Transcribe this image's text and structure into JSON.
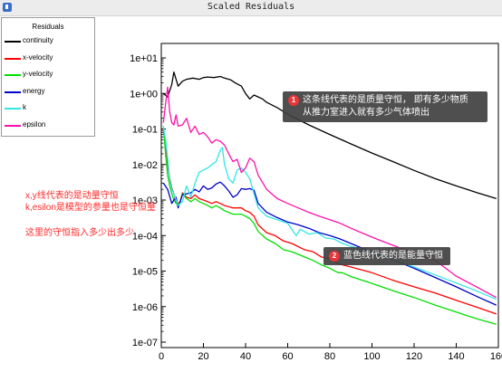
{
  "window": {
    "title": "Scaled Residuals"
  },
  "legend": {
    "title": "Residuals",
    "items": [
      {
        "name": "continuity",
        "color": "#000000"
      },
      {
        "name": "x-velocity",
        "color": "#ff0000"
      },
      {
        "name": "y-velocity",
        "color": "#00e000"
      },
      {
        "name": "energy",
        "color": "#0000cc"
      },
      {
        "name": "k",
        "color": "#33e6e6"
      },
      {
        "name": "epsilon",
        "color": "#ff11aa"
      }
    ]
  },
  "annotations": {
    "callout_1": {
      "badge": "1",
      "line1": "这条线代表的是质量守恒，  即有多少物质",
      "line2": "从推力室进入就有多少气体喷出"
    },
    "callout_2": {
      "badge": "2",
      "text": "蓝色线代表的是能量守恒"
    },
    "note_line1": "x,y线代表的是动量守恒",
    "note_line2": "k,esilon是模型的参量也是守恒量",
    "note_line3": "这里的守恒指入多少出多少"
  },
  "chart_data": {
    "type": "line",
    "title": "",
    "xlabel": "",
    "ylabel": "",
    "xlim": [
      0,
      160
    ],
    "ylim": [
      1e-07,
      10
    ],
    "yscale": "log",
    "x_ticks": [
      0,
      20,
      40,
      60,
      80,
      100,
      120,
      140,
      160
    ],
    "y_ticks": [
      {
        "value": 1e-07,
        "label": "1e-07"
      },
      {
        "value": 1e-06,
        "label": "1e-06"
      },
      {
        "value": 1e-05,
        "label": "1e-05"
      },
      {
        "value": 0.0001,
        "label": "1e-04"
      },
      {
        "value": 0.001,
        "label": "1e-03"
      },
      {
        "value": 0.01,
        "label": "1e-02"
      },
      {
        "value": 0.1,
        "label": "1e-01"
      },
      {
        "value": 1,
        "label": "1e+00"
      },
      {
        "value": 10,
        "label": "1e+01"
      }
    ],
    "grid": false,
    "series": [
      {
        "name": "continuity",
        "color": "#000000",
        "points": [
          [
            1,
            1
          ],
          [
            3,
            0.8
          ],
          [
            5,
            1.8
          ],
          [
            6,
            4
          ],
          [
            7,
            2.5
          ],
          [
            8,
            1.6
          ],
          [
            10,
            2.2
          ],
          [
            12,
            2.5
          ],
          [
            15,
            2.7
          ],
          [
            18,
            2.5
          ],
          [
            20,
            2.8
          ],
          [
            22,
            2.9
          ],
          [
            25,
            2.8
          ],
          [
            28,
            3
          ],
          [
            30,
            2.7
          ],
          [
            33,
            2.4
          ],
          [
            35,
            2
          ],
          [
            38,
            1.6
          ],
          [
            40,
            1
          ],
          [
            42,
            0.7
          ],
          [
            44,
            0.9
          ],
          [
            46,
            0.8
          ],
          [
            48,
            0.7
          ],
          [
            50,
            0.56
          ],
          [
            55,
            0.4
          ],
          [
            60,
            0.26
          ],
          [
            70,
            0.13
          ],
          [
            80,
            0.07
          ],
          [
            90,
            0.038
          ],
          [
            100,
            0.021
          ],
          [
            110,
            0.012
          ],
          [
            120,
            0.0068
          ],
          [
            130,
            0.004
          ],
          [
            140,
            0.0025
          ],
          [
            150,
            0.0016
          ],
          [
            159,
            0.0011
          ]
        ]
      },
      {
        "name": "x-velocity",
        "color": "#ff0000",
        "points": [
          [
            1,
            0.1
          ],
          [
            2,
            0.04
          ],
          [
            3,
            0.01
          ],
          [
            4,
            0.004
          ],
          [
            5,
            0.0022
          ],
          [
            6,
            0.0015
          ],
          [
            7,
            0.0009
          ],
          [
            8,
            0.0008
          ],
          [
            9,
            0.0009
          ],
          [
            10,
            0.0016
          ],
          [
            12,
            0.0012
          ],
          [
            14,
            0.0011
          ],
          [
            16,
            0.0014
          ],
          [
            18,
            0.0011
          ],
          [
            20,
            0.001
          ],
          [
            22,
            0.0009
          ],
          [
            24,
            0.0008
          ],
          [
            26,
            0.0009
          ],
          [
            28,
            0.0008
          ],
          [
            30,
            0.0007
          ],
          [
            34,
            0.0006
          ],
          [
            38,
            0.0006
          ],
          [
            40,
            0.0005
          ],
          [
            42,
            0.00045
          ],
          [
            44,
            0.00035
          ],
          [
            46,
            0.0002
          ],
          [
            50,
            0.00012
          ],
          [
            54,
            0.0001
          ],
          [
            58,
            7e-05
          ],
          [
            62,
            6e-05
          ],
          [
            68,
            4e-05
          ],
          [
            72,
            3.5e-05
          ],
          [
            76,
            2.5e-05
          ],
          [
            80,
            2.2e-05
          ],
          [
            84,
            1.6e-05
          ],
          [
            86,
            1.5e-05
          ],
          [
            90,
            1.3e-05
          ],
          [
            100,
            9e-06
          ],
          [
            110,
            5.5e-06
          ],
          [
            120,
            3.6e-06
          ],
          [
            130,
            2.4e-06
          ],
          [
            140,
            1.5e-06
          ],
          [
            150,
            9.5e-07
          ],
          [
            159,
            6.2e-07
          ]
        ]
      },
      {
        "name": "y-velocity",
        "color": "#00e000",
        "points": [
          [
            1,
            0.12
          ],
          [
            2,
            0.02
          ],
          [
            3,
            0.005
          ],
          [
            4,
            0.0025
          ],
          [
            5,
            0.0015
          ],
          [
            6,
            0.001
          ],
          [
            7,
            0.0008
          ],
          [
            8,
            0.0007
          ],
          [
            9,
            0.0009
          ],
          [
            10,
            0.0015
          ],
          [
            12,
            0.0011
          ],
          [
            14,
            0.0009
          ],
          [
            16,
            0.0011
          ],
          [
            18,
            0.0009
          ],
          [
            20,
            0.0008
          ],
          [
            22,
            0.0007
          ],
          [
            24,
            0.0006
          ],
          [
            26,
            0.0007
          ],
          [
            28,
            0.0006
          ],
          [
            30,
            0.0005
          ],
          [
            34,
            0.0004
          ],
          [
            38,
            0.0004
          ],
          [
            40,
            0.00035
          ],
          [
            42,
            0.0003
          ],
          [
            44,
            0.00022
          ],
          [
            46,
            0.00013
          ],
          [
            50,
            8e-05
          ],
          [
            54,
            6e-05
          ],
          [
            58,
            4e-05
          ],
          [
            62,
            3.5e-05
          ],
          [
            68,
            2.5e-05
          ],
          [
            72,
            2e-05
          ],
          [
            76,
            1.5e-05
          ],
          [
            80,
            1.2e-05
          ],
          [
            84,
            9e-06
          ],
          [
            86,
            9e-06
          ],
          [
            90,
            7e-06
          ],
          [
            100,
            4.5e-06
          ],
          [
            110,
            2.8e-06
          ],
          [
            120,
            1.8e-06
          ],
          [
            130,
            1.1e-06
          ],
          [
            140,
            7e-07
          ],
          [
            150,
            4.5e-07
          ],
          [
            159,
            3.2e-07
          ]
        ]
      },
      {
        "name": "energy",
        "color": "#0000cc",
        "points": [
          [
            1,
            0.003
          ],
          [
            3,
            0.002
          ],
          [
            5,
            0.0008
          ],
          [
            6,
            0.001
          ],
          [
            7,
            0.0012
          ],
          [
            8,
            0.0006
          ],
          [
            10,
            0.0014
          ],
          [
            12,
            0.0015
          ],
          [
            14,
            0.0016
          ],
          [
            16,
            0.002
          ],
          [
            18,
            0.0017
          ],
          [
            20,
            0.0025
          ],
          [
            22,
            0.002
          ],
          [
            24,
            0.0022
          ],
          [
            26,
            0.0028
          ],
          [
            28,
            0.0032
          ],
          [
            30,
            0.0025
          ],
          [
            32,
            0.0018
          ],
          [
            34,
            0.0012
          ],
          [
            36,
            0.0014
          ],
          [
            38,
            0.0021
          ],
          [
            40,
            0.002
          ],
          [
            42,
            0.0021
          ],
          [
            44,
            0.0019
          ],
          [
            46,
            0.0008
          ],
          [
            50,
            0.00045
          ],
          [
            55,
            0.00032
          ],
          [
            60,
            0.00024
          ],
          [
            65,
            0.0002
          ],
          [
            70,
            0.00016
          ],
          [
            75,
            0.00012
          ],
          [
            80,
            0.0001
          ],
          [
            85,
            8e-05
          ],
          [
            90,
            6e-05
          ],
          [
            95,
            4.5e-05
          ],
          [
            100,
            3.5e-05
          ],
          [
            110,
            2.1e-05
          ],
          [
            120,
            1.2e-05
          ],
          [
            130,
            6.6e-06
          ],
          [
            140,
            3.6e-06
          ],
          [
            150,
            1.9e-06
          ],
          [
            159,
            1.1e-06
          ]
        ]
      },
      {
        "name": "k",
        "color": "#33e6e6",
        "points": [
          [
            1,
            0.12
          ],
          [
            2,
            0.05
          ],
          [
            3,
            0.015
          ],
          [
            4,
            0.0035
          ],
          [
            5,
            0.002
          ],
          [
            6,
            0.0015
          ],
          [
            7,
            0.001
          ],
          [
            8,
            0.0007
          ],
          [
            9,
            0.0008
          ],
          [
            10,
            0.0009
          ],
          [
            12,
            0.0025
          ],
          [
            14,
            0.0012
          ],
          [
            16,
            0.003
          ],
          [
            18,
            0.006
          ],
          [
            20,
            0.007
          ],
          [
            22,
            0.008
          ],
          [
            24,
            0.01
          ],
          [
            26,
            0.012
          ],
          [
            28,
            0.025
          ],
          [
            29,
            0.03
          ],
          [
            30,
            0.01
          ],
          [
            32,
            0.004
          ],
          [
            34,
            0.003
          ],
          [
            36,
            0.007
          ],
          [
            38,
            0.008
          ],
          [
            40,
            0.006
          ],
          [
            42,
            0.004
          ],
          [
            44,
            0.0015
          ],
          [
            46,
            0.0006
          ],
          [
            50,
            0.00035
          ],
          [
            55,
            0.00028
          ],
          [
            60,
            0.00022
          ],
          [
            64,
            0.0001
          ],
          [
            66,
            0.00015
          ],
          [
            70,
            0.00011
          ],
          [
            74,
            0.00012
          ],
          [
            78,
            8.5e-05
          ],
          [
            82,
            8e-05
          ],
          [
            86,
            6e-05
          ],
          [
            90,
            5e-05
          ],
          [
            100,
            3.4e-05
          ],
          [
            110,
            2.1e-05
          ],
          [
            120,
            1.3e-05
          ],
          [
            130,
            7.8e-06
          ],
          [
            140,
            4.6e-06
          ],
          [
            150,
            2.7e-06
          ],
          [
            159,
            1.6e-06
          ]
        ]
      },
      {
        "name": "epsilon",
        "color": "#ff11aa",
        "points": [
          [
            1,
            0.15
          ],
          [
            2,
            0.5
          ],
          [
            3,
            1.5
          ],
          [
            4,
            0.3
          ],
          [
            5,
            0.15
          ],
          [
            6,
            0.13
          ],
          [
            7,
            0.25
          ],
          [
            8,
            0.12
          ],
          [
            10,
            0.13
          ],
          [
            12,
            0.2
          ],
          [
            14,
            0.08
          ],
          [
            16,
            0.12
          ],
          [
            18,
            0.07
          ],
          [
            20,
            0.08
          ],
          [
            22,
            0.06
          ],
          [
            24,
            0.04
          ],
          [
            26,
            0.05
          ],
          [
            28,
            0.045
          ],
          [
            30,
            0.035
          ],
          [
            32,
            0.02
          ],
          [
            34,
            0.012
          ],
          [
            36,
            0.014
          ],
          [
            38,
            0.006
          ],
          [
            40,
            0.008
          ],
          [
            42,
            0.015
          ],
          [
            44,
            0.012
          ],
          [
            46,
            0.005
          ],
          [
            50,
            0.002
          ],
          [
            55,
            0.0011
          ],
          [
            60,
            0.0008
          ],
          [
            65,
            0.0006
          ],
          [
            70,
            0.00045
          ],
          [
            75,
            0.00035
          ],
          [
            80,
            0.00028
          ],
          [
            85,
            0.00022
          ],
          [
            90,
            0.00016
          ],
          [
            95,
            0.00012
          ],
          [
            100,
            9e-05
          ],
          [
            110,
            5.3e-05
          ],
          [
            120,
            3.2e-05
          ],
          [
            130,
            2e-05
          ],
          [
            140,
            7.2e-06
          ],
          [
            150,
            3.5e-06
          ],
          [
            159,
            1.8e-06
          ]
        ]
      }
    ]
  }
}
